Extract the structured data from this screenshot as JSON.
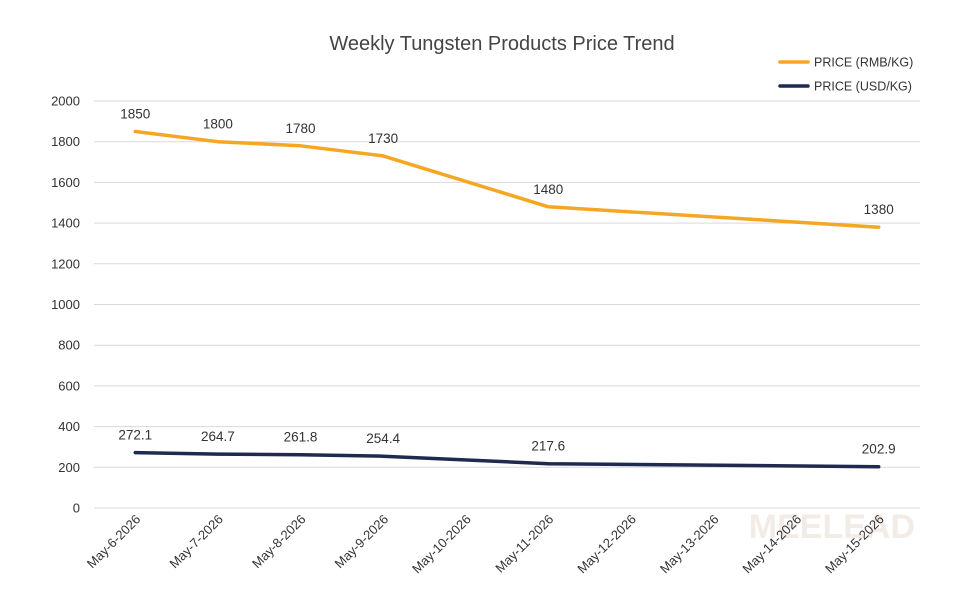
{
  "chart_data": {
    "type": "line",
    "title": "Weekly Tungsten Products Price Trend",
    "categories": [
      "May-6-2026",
      "May-7-2026",
      "May-8-2026",
      "May-9-2026",
      "May-10-2026",
      "May-11-2026",
      "May-12-2026",
      "May-13-2026",
      "May-14-2026",
      "May-15-2026"
    ],
    "series": [
      {
        "name": "PRICE (RMB/KG)",
        "color": "#F5A623",
        "points": [
          {
            "x": "May-6-2026",
            "y": 1850,
            "label": "1850"
          },
          {
            "x": "May-7-2026",
            "y": 1800,
            "label": "1800"
          },
          {
            "x": "May-8-2026",
            "y": 1780,
            "label": "1780"
          },
          {
            "x": "May-9-2026",
            "y": 1730,
            "label": "1730"
          },
          {
            "x": "May-11-2026",
            "y": 1480,
            "label": "1480"
          },
          {
            "x": "May-15-2026",
            "y": 1380,
            "label": "1380"
          }
        ]
      },
      {
        "name": "PRICE (USD/KG)",
        "color": "#1F2A4F",
        "points": [
          {
            "x": "May-6-2026",
            "y": 272.1,
            "label": "272.1"
          },
          {
            "x": "May-7-2026",
            "y": 264.7,
            "label": "264.7"
          },
          {
            "x": "May-8-2026",
            "y": 261.8,
            "label": "261.8"
          },
          {
            "x": "May-9-2026",
            "y": 254.4,
            "label": "254.4"
          },
          {
            "x": "May-11-2026",
            "y": 217.6,
            "label": "217.6"
          },
          {
            "x": "May-15-2026",
            "y": 202.9,
            "label": "202.9"
          }
        ]
      }
    ],
    "yticks": [
      "0",
      "200",
      "400",
      "600",
      "800",
      "1000",
      "1200",
      "1400",
      "1600",
      "1800",
      "2000"
    ],
    "ylim": [
      0,
      2000
    ],
    "xlabel": "",
    "ylabel": "",
    "grid": true,
    "legend_position": "top-right",
    "gridline_color": "#d9d9d9",
    "watermark_text": "MEELEAD"
  }
}
